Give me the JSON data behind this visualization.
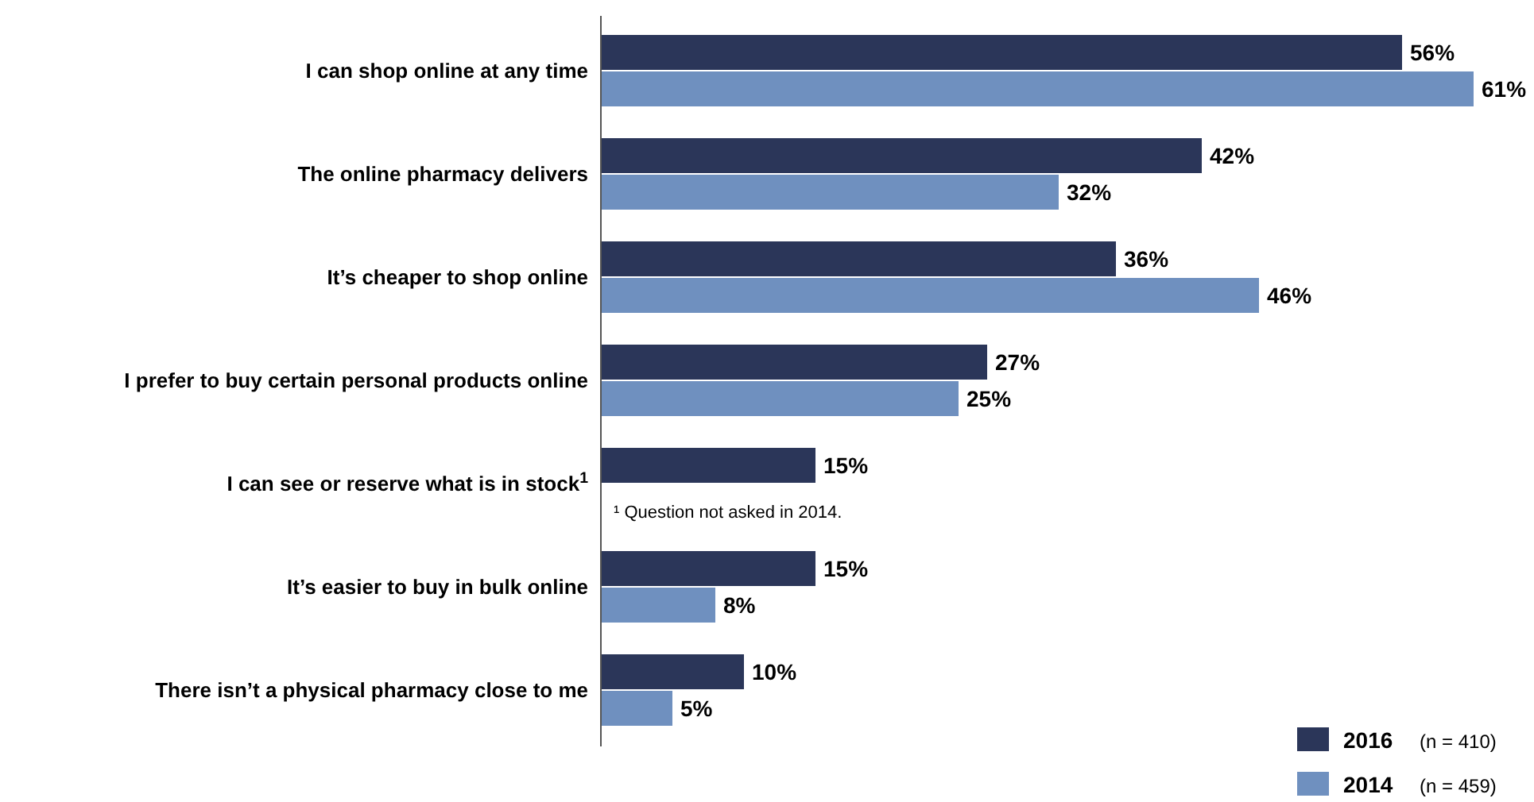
{
  "chart_data": {
    "type": "bar",
    "orientation": "horizontal",
    "categories": [
      "I can shop online at any time",
      "The online pharmacy delivers",
      "It’s cheaper to shop online",
      "I prefer to buy certain personal products online",
      "I can see or reserve what is in stock$^{1}$",
      "It’s easier to buy in bulk online",
      "There isn’t a physical pharmacy close to me"
    ],
    "series": [
      {
        "name": "2016",
        "color": "#2b3659",
        "values": [
          56,
          42,
          36,
          27,
          15,
          15,
          10
        ],
        "value_labels": [
          "56%",
          "42%",
          "36%",
          "27%",
          "15%",
          "15%",
          "10%"
        ]
      },
      {
        "name": "2014",
        "color": "#6f90bf",
        "values": [
          61,
          32,
          46,
          25,
          null,
          8,
          5
        ],
        "value_labels": [
          "61%",
          "32%",
          "46%",
          "25%",
          null,
          "8%",
          "5%"
        ]
      }
    ],
    "annotations": [
      "¹ Question not asked in 2014.",
      "(n = 410)",
      "(n = 459)"
    ],
    "legend": "bottom right"
  }
}
